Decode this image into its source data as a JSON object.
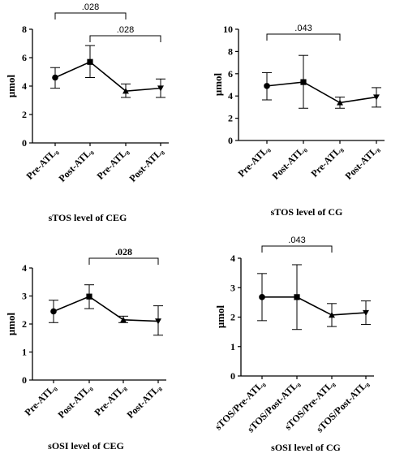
{
  "chart_data": [
    {
      "type": "line",
      "title": "sTOS level of CEG",
      "xlabel": "",
      "ylabel": "μmol",
      "categories": [
        "Pre-ATL₀",
        "Post-ATL₀",
        "Pre-ATL₈",
        "Post-ATL₈"
      ],
      "markers": [
        "circle",
        "square",
        "triangle-up",
        "triangle-down"
      ],
      "values": [
        4.6,
        5.7,
        3.65,
        3.85
      ],
      "error_low": [
        3.85,
        4.6,
        3.2,
        3.2
      ],
      "error_high": [
        5.3,
        6.85,
        4.15,
        4.5
      ],
      "ylim": [
        0,
        8
      ],
      "yticks": [
        0,
        2,
        4,
        6,
        8
      ],
      "significance": [
        {
          "from": 0,
          "to": 2,
          "label": ".028"
        },
        {
          "from": 1,
          "to": 3,
          "label": ".028"
        }
      ]
    },
    {
      "type": "line",
      "title": "sTOS level of CG",
      "xlabel": "",
      "ylabel": "μmol",
      "categories": [
        "Pre-ATL₀",
        "Post-ATL₀",
        "Pre-ATL₈",
        "Post-ATL₈"
      ],
      "markers": [
        "circle",
        "square",
        "triangle-up",
        "triangle-down"
      ],
      "values": [
        4.9,
        5.25,
        3.4,
        3.9
      ],
      "error_low": [
        3.65,
        2.9,
        2.9,
        3.0
      ],
      "error_high": [
        6.1,
        7.65,
        3.9,
        4.75
      ],
      "ylim": [
        0,
        10
      ],
      "yticks": [
        0,
        2,
        4,
        6,
        8,
        10
      ],
      "significance": [
        {
          "from": 0,
          "to": 2,
          "label": ".043"
        }
      ]
    },
    {
      "type": "line",
      "title": "sOSI level of CEG",
      "xlabel": "",
      "ylabel": "μmol",
      "categories": [
        "Pre-ATL₀",
        "Post-ATL₀",
        "Pre-ATL₈",
        "Post-ATL₈"
      ],
      "markers": [
        "circle",
        "square",
        "triangle-up",
        "triangle-down"
      ],
      "values": [
        2.45,
        2.98,
        2.15,
        2.1
      ],
      "error_low": [
        2.05,
        2.55,
        2.05,
        1.6
      ],
      "error_high": [
        2.85,
        3.4,
        2.28,
        2.65
      ],
      "ylim": [
        0,
        4
      ],
      "yticks": [
        0,
        1,
        2,
        3,
        4
      ],
      "significance": [
        {
          "from": 1,
          "to": 3,
          "label": ".028"
        }
      ]
    },
    {
      "type": "line",
      "title": "sOSI level of CG",
      "xlabel": "",
      "ylabel": "μmol",
      "categories": [
        "sTOS/Pre-ATL₀",
        "sTOS/Post-ATL₀",
        "sTOS/Pre-ATL₈",
        "sTOS/Post-ATL₈"
      ],
      "markers": [
        "circle",
        "square",
        "triangle-up",
        "triangle-down"
      ],
      "values": [
        2.68,
        2.68,
        2.07,
        2.15
      ],
      "error_low": [
        1.88,
        1.58,
        1.68,
        1.75
      ],
      "error_high": [
        3.48,
        3.78,
        2.46,
        2.55
      ],
      "ylim": [
        0,
        4
      ],
      "yticks": [
        0,
        1,
        2,
        3,
        4
      ],
      "significance": [
        {
          "from": 0,
          "to": 2,
          "label": ".043"
        }
      ]
    }
  ]
}
